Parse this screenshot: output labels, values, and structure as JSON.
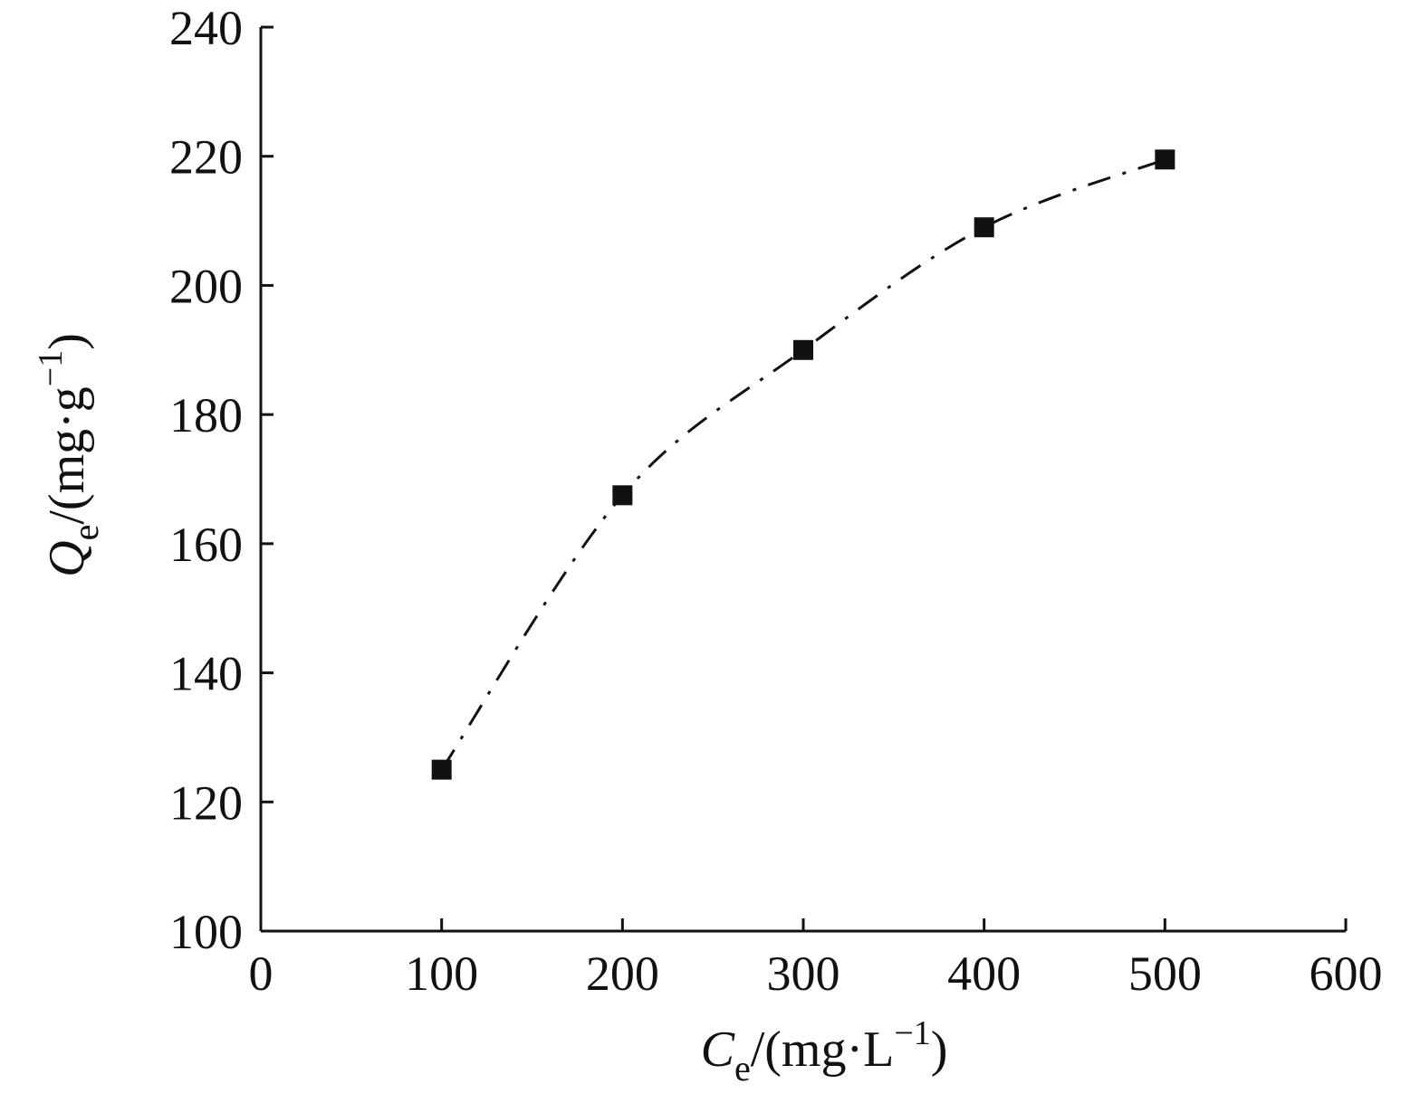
{
  "chart_data": {
    "type": "scatter",
    "x_ticks": [
      "0",
      "100",
      "200",
      "300",
      "400",
      "500",
      "600"
    ],
    "y_ticks": [
      "100",
      "120",
      "140",
      "160",
      "180",
      "200",
      "220",
      "240"
    ],
    "xlim": [
      0,
      600
    ],
    "ylim": [
      100,
      240
    ],
    "grid": false,
    "xlabel": {
      "symbol": "C",
      "subscript": "e",
      "unit_open": "/(mg·L",
      "unit_exp": "−1",
      "unit_close": ")"
    },
    "ylabel": {
      "symbol": "Q",
      "subscript": "e",
      "unit_open": "/(mg·g",
      "unit_exp": "−1",
      "unit_close": ")"
    },
    "series": [
      {
        "marker": "square",
        "color": "#111111",
        "line_style": "dash-dot",
        "points": [
          {
            "x": 100,
            "y": 125
          },
          {
            "x": 200,
            "y": 167.5
          },
          {
            "x": 300,
            "y": 190
          },
          {
            "x": 400,
            "y": 209
          },
          {
            "x": 500,
            "y": 219.5
          }
        ]
      }
    ]
  }
}
